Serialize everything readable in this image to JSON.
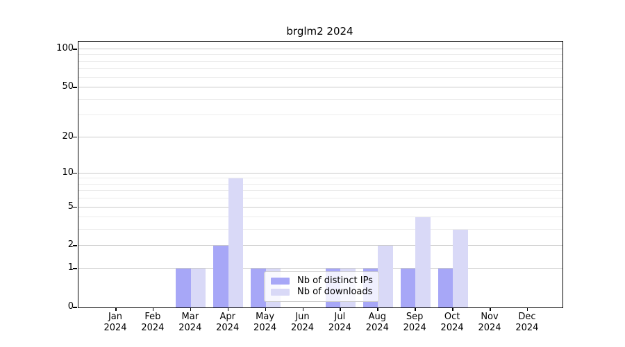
{
  "chart_data": {
    "type": "bar",
    "title": "brglm2 2024",
    "categories": [
      "Jan 2024",
      "Feb 2024",
      "Mar 2024",
      "Apr 2024",
      "May 2024",
      "Jun 2024",
      "Jul 2024",
      "Aug 2024",
      "Sep 2024",
      "Oct 2024",
      "Nov 2024",
      "Dec 2024"
    ],
    "x_tick_month": [
      "Jan",
      "Feb",
      "Mar",
      "Apr",
      "May",
      "Jun",
      "Jul",
      "Aug",
      "Sep",
      "Oct",
      "Nov",
      "Dec"
    ],
    "x_tick_year": "2024",
    "series": [
      {
        "name": "Nb of distinct IPs",
        "color": "#a7a7f7",
        "values": [
          0,
          0,
          1,
          2,
          1,
          0,
          1,
          1,
          1,
          1,
          0,
          0
        ]
      },
      {
        "name": "Nb of downloads",
        "color": "#d9d9f7",
        "values": [
          0,
          0,
          1,
          9,
          1,
          0,
          1,
          2,
          4,
          3,
          0,
          0
        ]
      }
    ],
    "xlabel": "",
    "ylabel": "",
    "yscale": "log1p",
    "ylim": [
      0,
      100
    ],
    "y_major_ticks": [
      0,
      1,
      2,
      5,
      10,
      20,
      50,
      100
    ],
    "y_minor_gridlines": [
      3,
      4,
      6,
      7,
      8,
      9,
      30,
      40,
      60,
      70,
      80,
      90
    ],
    "grid": true,
    "legend_position": "lower-center"
  },
  "colors": {
    "spine": "#000000",
    "major_grid": "#c9c9c9",
    "minor_grid": "#ececec",
    "background": "#ffffff"
  }
}
